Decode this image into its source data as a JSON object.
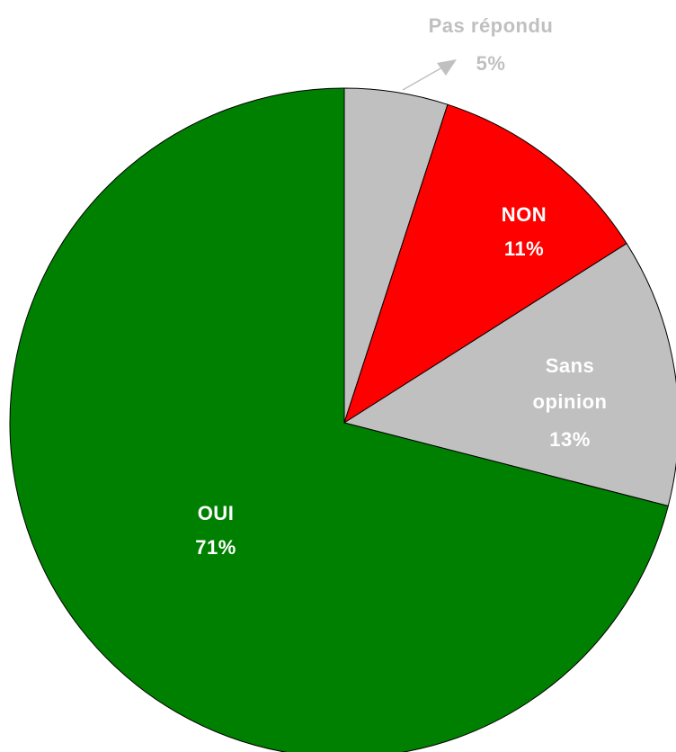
{
  "chart_data": {
    "type": "pie",
    "categories": [
      "Pas répondu",
      "NON",
      "Sans opinion",
      "OUI"
    ],
    "values": [
      5,
      11,
      13,
      71
    ],
    "value_labels": [
      "5%",
      "11%",
      "13%",
      "71%"
    ],
    "colors": [
      "#c0c0c0",
      "#ff0000",
      "#c0c0c0",
      "#008000"
    ],
    "start_angle": 90,
    "direction": "clockwise"
  }
}
